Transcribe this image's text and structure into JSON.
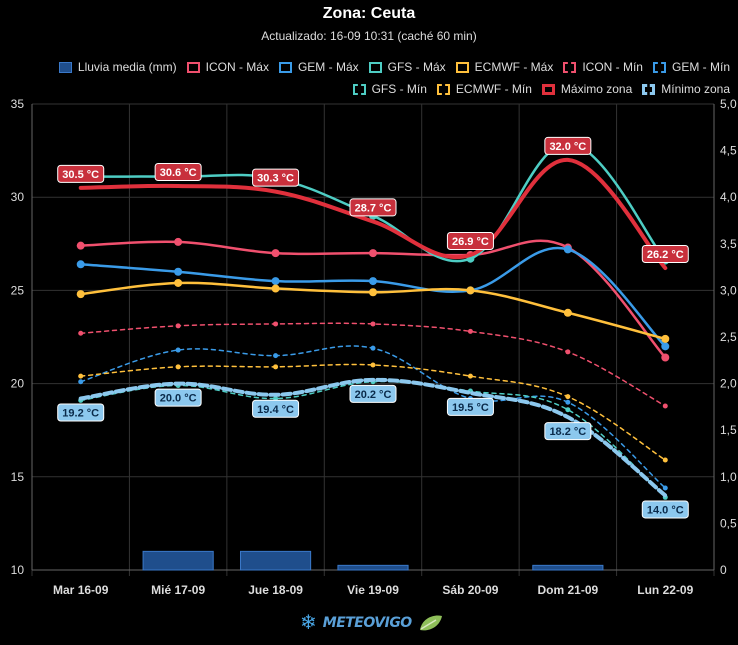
{
  "header": {
    "title": "Zona: Ceuta",
    "subtitle": "Actualizado: 16-09 10:31 (caché 60 min)"
  },
  "footer": {
    "brand": "METEOVIGO"
  },
  "chart_data": {
    "type": "line",
    "categories": [
      "Mar 16-09",
      "Mié 17-09",
      "Jue 18-09",
      "Vie 19-09",
      "Sáb 20-09",
      "Dom 21-09",
      "Lun 22-09"
    ],
    "y_left": {
      "min": 10,
      "max": 35,
      "ticks": [
        10,
        15,
        20,
        25,
        30,
        35
      ]
    },
    "y_right": {
      "min": 0,
      "max": 5,
      "ticks": [
        "0",
        "0,5",
        "1,0",
        "1,5",
        "2,0",
        "2,5",
        "3,0",
        "3,5",
        "4,0",
        "4,5",
        "5,0"
      ]
    },
    "grid": true,
    "legend_position": "top-right",
    "series": [
      {
        "name": "Lluvia media (mm)",
        "kind": "bar",
        "axis": "right",
        "color": "#1f4e8c",
        "values": [
          0,
          0.2,
          0.2,
          0.05,
          0,
          0.05,
          0
        ]
      },
      {
        "name": "ICON - Máx",
        "kind": "line",
        "color": "#f0506e",
        "dashed": false,
        "width": 2.5,
        "values": [
          27.4,
          27.6,
          27.0,
          27.0,
          26.9,
          27.3,
          21.4
        ]
      },
      {
        "name": "GEM - Máx",
        "kind": "line",
        "color": "#3a9be8",
        "dashed": false,
        "width": 2.5,
        "values": [
          26.4,
          26.0,
          25.5,
          25.5,
          25.0,
          27.2,
          22.0
        ]
      },
      {
        "name": "GFS - Máx",
        "kind": "line",
        "color": "#4ecdc4",
        "dashed": false,
        "width": 2.5,
        "values": [
          31.1,
          31.1,
          31.0,
          29.0,
          26.7,
          32.9,
          26.6
        ]
      },
      {
        "name": "ECMWF - Máx",
        "kind": "line",
        "color": "#ffc03c",
        "dashed": false,
        "width": 2.5,
        "values": [
          24.8,
          25.4,
          25.1,
          24.9,
          25.0,
          23.8,
          22.4
        ]
      },
      {
        "name": "ICON - Mín",
        "kind": "line",
        "color": "#f0506e",
        "dashed": true,
        "width": 1.5,
        "values": [
          22.7,
          23.1,
          23.2,
          23.2,
          22.8,
          21.7,
          18.8
        ]
      },
      {
        "name": "GEM - Mín",
        "kind": "line",
        "color": "#3a9be8",
        "dashed": true,
        "width": 1.5,
        "values": [
          20.1,
          21.8,
          21.5,
          21.9,
          19.2,
          19.0,
          14.4
        ]
      },
      {
        "name": "GFS - Mín",
        "kind": "line",
        "color": "#4ecdc4",
        "dashed": true,
        "width": 1.5,
        "values": [
          19.1,
          19.9,
          19.2,
          20.1,
          19.6,
          18.6,
          13.9
        ]
      },
      {
        "name": "ECMWF - Mín",
        "kind": "line",
        "color": "#ffc03c",
        "dashed": true,
        "width": 1.5,
        "values": [
          20.4,
          20.9,
          20.9,
          21.0,
          20.4,
          19.3,
          15.9
        ]
      },
      {
        "name": "Máximo zona",
        "kind": "line",
        "color": "#e0303c",
        "dashed": false,
        "width": 4,
        "values": [
          30.5,
          30.6,
          30.3,
          28.7,
          26.9,
          32.0,
          26.2
        ],
        "labels": [
          "30.5 °C",
          "30.6 °C",
          "30.3 °C",
          "28.7 °C",
          "26.9 °C",
          "32.0 °C",
          "26.2 °C"
        ],
        "label_bg": "#c8303c"
      },
      {
        "name": "Mínimo zona",
        "kind": "line",
        "color": "#8cc8ee",
        "dashed": true,
        "width": 4,
        "values": [
          19.2,
          20.0,
          19.4,
          20.2,
          19.5,
          18.2,
          14.0
        ],
        "labels": [
          "19.2 °C",
          "20.0 °C",
          "19.4 °C",
          "20.2 °C",
          "19.5 °C",
          "18.2 °C",
          "14.0 °C"
        ],
        "label_bg": "#8cc8ee"
      }
    ]
  }
}
